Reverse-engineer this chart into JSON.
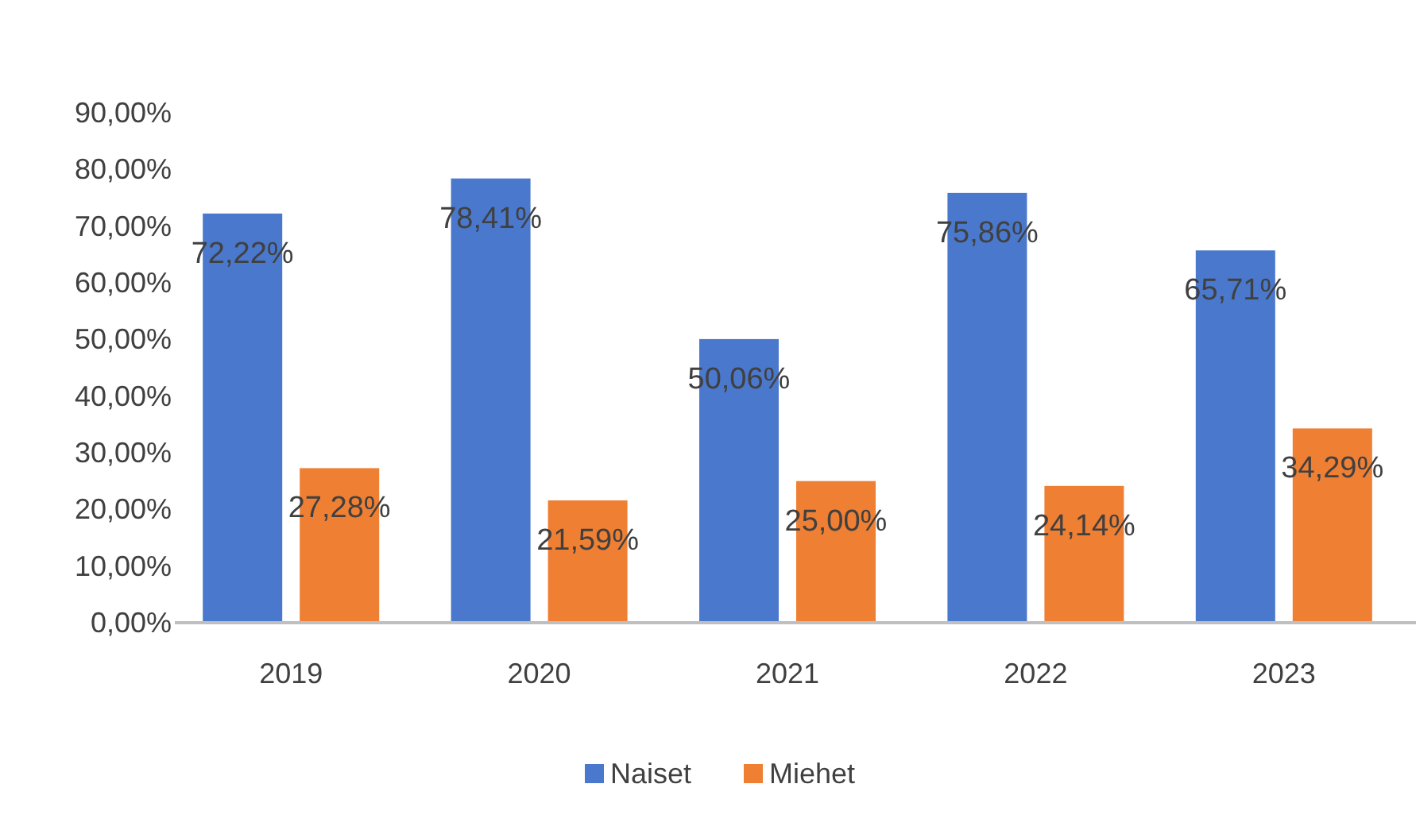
{
  "chart_data": {
    "type": "bar",
    "categories": [
      "2019",
      "2020",
      "2021",
      "2022",
      "2023"
    ],
    "series": [
      {
        "name": "Naiset",
        "color": "#4a78cc",
        "values": [
          72.22,
          78.41,
          50.06,
          75.86,
          65.71
        ],
        "value_labels": [
          "72,22%",
          "78,41%",
          "50,06%",
          "75,86%",
          "65,71%"
        ]
      },
      {
        "name": "Miehet",
        "color": "#ef7f33",
        "values": [
          27.28,
          21.59,
          25.0,
          24.14,
          34.29
        ],
        "value_labels": [
          "27,28%",
          "21,59%",
          "25,00%",
          "24,14%",
          "34,29%"
        ]
      }
    ],
    "ylim": [
      0,
      90
    ],
    "yticks": [
      {
        "value": 0,
        "label": "0,00%"
      },
      {
        "value": 10,
        "label": "10,00%"
      },
      {
        "value": 20,
        "label": "20,00%"
      },
      {
        "value": 30,
        "label": "30,00%"
      },
      {
        "value": 40,
        "label": "40,00%"
      },
      {
        "value": 50,
        "label": "50,00%"
      },
      {
        "value": 60,
        "label": "60,00%"
      },
      {
        "value": 70,
        "label": "70,00%"
      },
      {
        "value": 80,
        "label": "80,00%"
      },
      {
        "value": 90,
        "label": "90,00%"
      }
    ],
    "grid": false,
    "legend": "bottom"
  }
}
